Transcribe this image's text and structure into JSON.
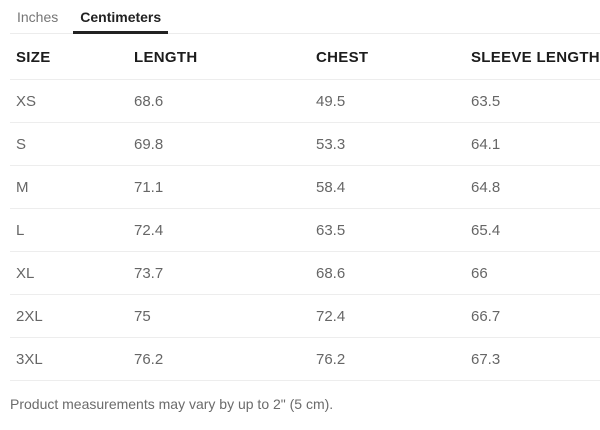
{
  "tabs": [
    {
      "label": "Inches",
      "active": false
    },
    {
      "label": "Centimeters",
      "active": true
    }
  ],
  "table": {
    "headers": [
      "SIZE",
      "LENGTH",
      "CHEST",
      "SLEEVE LENGTH"
    ],
    "rows": [
      [
        "XS",
        "68.6",
        "49.5",
        "63.5"
      ],
      [
        "S",
        "69.8",
        "53.3",
        "64.1"
      ],
      [
        "M",
        "71.1",
        "58.4",
        "64.8"
      ],
      [
        "L",
        "72.4",
        "63.5",
        "65.4"
      ],
      [
        "XL",
        "73.7",
        "68.6",
        "66"
      ],
      [
        "2XL",
        "75",
        "72.4",
        "66.7"
      ],
      [
        "3XL",
        "76.2",
        "76.2",
        "67.3"
      ]
    ]
  },
  "footer": {
    "note": "Product measurements may vary by up to 2\" (5 cm)."
  },
  "colors": {
    "active_tab": "#222222",
    "inactive_tab": "#757575",
    "header_text": "#1c1c1c",
    "cell_text": "#666666",
    "border": "#ececec",
    "background": "#ffffff"
  }
}
